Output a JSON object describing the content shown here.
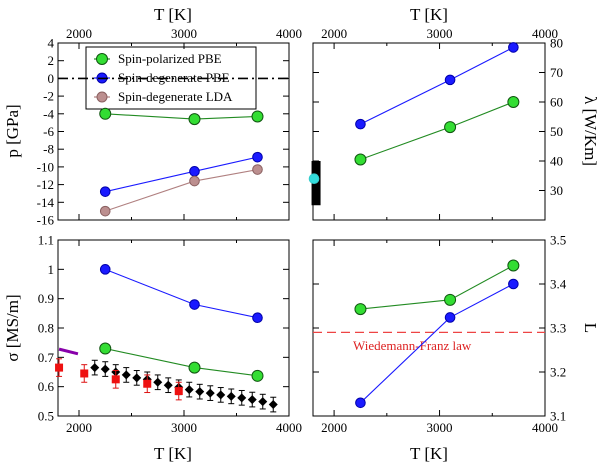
{
  "chart_data": [
    {
      "id": "pressure",
      "type": "line",
      "xlabel": "T [K]",
      "ylabel": "p [GPa]",
      "xlim": [
        1800,
        4000
      ],
      "ylim": [
        -16,
        4
      ],
      "x_ticks": [
        2000,
        2500,
        3000,
        3500,
        4000
      ],
      "y_ticks": [
        -16,
        -14,
        -12,
        -10,
        -8,
        -6,
        -4,
        -2,
        0,
        2,
        4
      ],
      "tick_labels_top": [
        "2000",
        "3000",
        "4000"
      ],
      "tick_labels_left": [
        "-16",
        "-14",
        "-12",
        "-10",
        "-8",
        "-6",
        "-4",
        "-2",
        "0",
        "2",
        "4"
      ],
      "series": [
        {
          "name": "Spin-polarized PBE",
          "color": "#228B22",
          "marker_fill": "#33dd33",
          "x": [
            2250,
            3100,
            3700
          ],
          "y": [
            -4.0,
            -4.6,
            -4.3
          ]
        },
        {
          "name": "Spin-degenerate PBE",
          "color": "#1a1aff",
          "marker_fill": "#1a1aff",
          "x": [
            2250,
            3100,
            3700
          ],
          "y": [
            -12.8,
            -10.5,
            -8.9
          ]
        },
        {
          "name": "Spin-degenerate LDA",
          "color": "#b08080",
          "marker_fill": "#bc8f8f",
          "x": [
            2250,
            3100,
            3700
          ],
          "y": [
            -15.0,
            -11.6,
            -10.3
          ]
        }
      ],
      "reference_line": {
        "y": 0,
        "style": "dash-dot",
        "color": "#000000"
      },
      "legend": "top-left"
    },
    {
      "id": "thermal_conductivity",
      "type": "line",
      "xlabel": "",
      "ylabel": "λ [W/Km]",
      "xlim": [
        1800,
        4000
      ],
      "ylim": [
        20,
        80
      ],
      "x_ticks": [
        2000,
        2500,
        3000,
        3500,
        4000
      ],
      "y_ticks": [
        30,
        40,
        50,
        60,
        70,
        80
      ],
      "tick_labels_top": [
        "2000",
        "3000",
        "4000"
      ],
      "tick_labels_right": [
        "30",
        "40",
        "50",
        "60",
        "70",
        "80"
      ],
      "series": [
        {
          "name": "Spin-polarized PBE",
          "color": "#228B22",
          "marker_fill": "#33dd33",
          "x": [
            2250,
            3100,
            3700
          ],
          "y": [
            40.5,
            51.5,
            60.0
          ]
        },
        {
          "name": "Spin-degenerate PBE",
          "color": "#1a1aff",
          "marker_fill": "#1a1aff",
          "x": [
            2250,
            3100,
            3700
          ],
          "y": [
            52.5,
            67.5,
            78.5
          ]
        },
        {
          "name": "Reference (cyan)",
          "color": "#33cccc",
          "marker_fill": "#33dddd",
          "x": [
            1810
          ],
          "y": [
            34.0
          ]
        }
      ],
      "error_bar": {
        "x": 1810,
        "y_low": 25,
        "y_high": 40,
        "color": "#000000"
      }
    },
    {
      "id": "electrical_conductivity",
      "type": "line",
      "xlabel": "T [K]",
      "ylabel": "σ [MS/m]",
      "xlim": [
        1800,
        4000
      ],
      "ylim": [
        0.5,
        1.1
      ],
      "x_ticks": [
        2000,
        2500,
        3000,
        3500,
        4000
      ],
      "y_ticks": [
        0.5,
        0.6,
        0.7,
        0.8,
        0.9,
        1.0,
        1.1
      ],
      "tick_labels_bottom": [
        "2000",
        "3000",
        "4000"
      ],
      "tick_labels_left": [
        "0.5",
        "0.6",
        "0.7",
        "0.8",
        "0.9",
        "1",
        "1.1"
      ],
      "series": [
        {
          "name": "Spin-polarized PBE",
          "color": "#228B22",
          "marker_fill": "#33dd33",
          "x": [
            2250,
            3100,
            3700
          ],
          "y": [
            0.73,
            0.665,
            0.637
          ]
        },
        {
          "name": "Spin-degenerate PBE",
          "color": "#1a1aff",
          "marker_fill": "#1a1aff",
          "x": [
            2250,
            3100,
            3700
          ],
          "y": [
            1.0,
            0.88,
            0.835
          ]
        },
        {
          "name": "Experiment (diamonds)",
          "color": "#000000",
          "marker_fill": "#000000",
          "marker": "diamond",
          "x": [
            2150,
            2250,
            2350,
            2450,
            2550,
            2650,
            2750,
            2850,
            2950,
            3050,
            3150,
            3250,
            3350,
            3450,
            3550,
            3650,
            3750,
            3850
          ],
          "y": [
            0.665,
            0.66,
            0.65,
            0.64,
            0.63,
            0.625,
            0.615,
            0.605,
            0.598,
            0.59,
            0.583,
            0.578,
            0.572,
            0.567,
            0.562,
            0.556,
            0.549,
            0.539
          ],
          "err": 0.025
        },
        {
          "name": "Experiment (squares)",
          "color": "#dd1111",
          "marker_fill": "#ee1111",
          "marker": "square",
          "x": [
            1810,
            2050,
            2350,
            2650,
            2950
          ],
          "y": [
            0.665,
            0.645,
            0.625,
            0.61,
            0.585
          ],
          "err": 0.03
        },
        {
          "name": "Reference (purple)",
          "color": "#8800aa",
          "x": [
            1810,
            1990
          ],
          "y": [
            0.728,
            0.712
          ]
        }
      ]
    },
    {
      "id": "lorenz_number",
      "type": "line",
      "xlabel": "T [K]",
      "ylabel": "L",
      "xlim": [
        1800,
        4000
      ],
      "ylim": [
        3.1,
        3.5
      ],
      "x_ticks": [
        2000,
        2500,
        3000,
        3500,
        4000
      ],
      "y_ticks": [
        3.1,
        3.2,
        3.3,
        3.4,
        3.5
      ],
      "tick_labels_bottom": [
        "2000",
        "3000",
        "4000"
      ],
      "tick_labels_right": [
        "3.1",
        "3.2",
        "3.3",
        "3.4",
        "3.5"
      ],
      "series": [
        {
          "name": "Spin-polarized PBE",
          "color": "#228B22",
          "marker_fill": "#33dd33",
          "x": [
            2250,
            3100,
            3700
          ],
          "y": [
            3.343,
            3.364,
            3.442
          ]
        },
        {
          "name": "Spin-degenerate PBE",
          "color": "#1a1aff",
          "marker_fill": "#1a1aff",
          "x": [
            2250,
            3100,
            3700
          ],
          "y": [
            3.13,
            3.324,
            3.4
          ]
        }
      ],
      "reference_line": {
        "y": 3.29,
        "style": "dashed",
        "color": "#ee4444"
      },
      "annotation": "Wiedemann-Franz law"
    }
  ]
}
